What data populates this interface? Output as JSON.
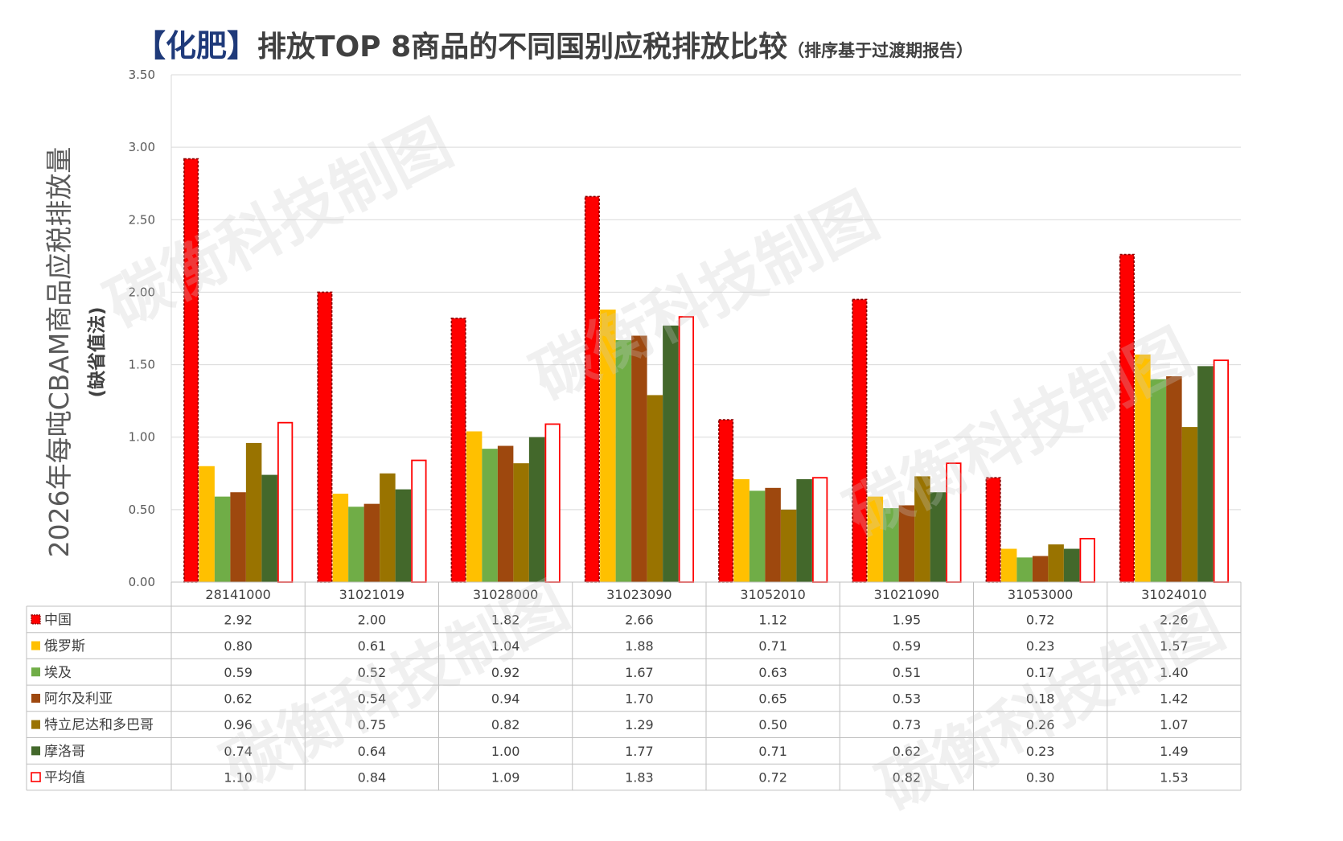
{
  "title": {
    "bracket_text": "【化肥】",
    "main_text": "排放TOP 8商品的不同国别应税排放比较",
    "sub_text": "（排序基于过渡期报告）"
  },
  "watermark": "碳衡科技制图",
  "chart_data": {
    "type": "bar",
    "ylabel": "2026年每吨CBAM商品应税排放量",
    "ylabel_sub": "(缺省值法)",
    "ylim": [
      0,
      3.5
    ],
    "yticks": [
      "0.00",
      "0.50",
      "1.00",
      "1.50",
      "2.00",
      "2.50",
      "3.00",
      "3.50"
    ],
    "grid": true,
    "legend_placement": "data-table",
    "categories": [
      "28141000",
      "31021019",
      "31028000",
      "31023090",
      "31052010",
      "31021090",
      "31053000",
      "31024010"
    ],
    "series": [
      {
        "name": "中国",
        "color": "#ff0000",
        "style": "dashed",
        "values": [
          2.92,
          2.0,
          1.82,
          2.66,
          1.12,
          1.95,
          0.72,
          2.26
        ],
        "labels": [
          "2.92",
          "2.00",
          "1.82",
          "2.66",
          "1.12",
          "1.95",
          "0.72",
          "2.26"
        ]
      },
      {
        "name": "俄罗斯",
        "color": "#ffc000",
        "style": "solid",
        "values": [
          0.8,
          0.61,
          1.04,
          1.88,
          0.71,
          0.59,
          0.23,
          1.57
        ],
        "labels": [
          "0.80",
          "0.61",
          "1.04",
          "1.88",
          "0.71",
          "0.59",
          "0.23",
          "1.57"
        ]
      },
      {
        "name": "埃及",
        "color": "#70ad47",
        "style": "solid",
        "values": [
          0.59,
          0.52,
          0.92,
          1.67,
          0.63,
          0.51,
          0.17,
          1.4
        ],
        "labels": [
          "0.59",
          "0.52",
          "0.92",
          "1.67",
          "0.63",
          "0.51",
          "0.17",
          "1.40"
        ]
      },
      {
        "name": "阿尔及利亚",
        "color": "#9e480e",
        "style": "solid",
        "values": [
          0.62,
          0.54,
          0.94,
          1.7,
          0.65,
          0.53,
          0.18,
          1.42
        ],
        "labels": [
          "0.62",
          "0.54",
          "0.94",
          "1.70",
          "0.65",
          "0.53",
          "0.18",
          "1.42"
        ]
      },
      {
        "name": "特立尼达和多巴哥",
        "color": "#997300",
        "style": "solid",
        "values": [
          0.96,
          0.75,
          0.82,
          1.29,
          0.5,
          0.73,
          0.26,
          1.07
        ],
        "labels": [
          "0.96",
          "0.75",
          "0.82",
          "1.29",
          "0.50",
          "0.73",
          "0.26",
          "1.07"
        ]
      },
      {
        "name": "摩洛哥",
        "color": "#43682b",
        "style": "solid",
        "values": [
          0.74,
          0.64,
          1.0,
          1.77,
          0.71,
          0.62,
          0.23,
          1.49
        ],
        "labels": [
          "0.74",
          "0.64",
          "1.00",
          "1.77",
          "0.71",
          "0.62",
          "0.23",
          "1.49"
        ]
      },
      {
        "name": "平均值",
        "color": "#ff0000",
        "style": "outline",
        "values": [
          1.1,
          0.84,
          1.09,
          1.83,
          0.72,
          0.82,
          0.3,
          1.53
        ],
        "labels": [
          "1.10",
          "0.84",
          "1.09",
          "1.83",
          "0.72",
          "0.82",
          "0.30",
          "1.53"
        ]
      }
    ]
  }
}
